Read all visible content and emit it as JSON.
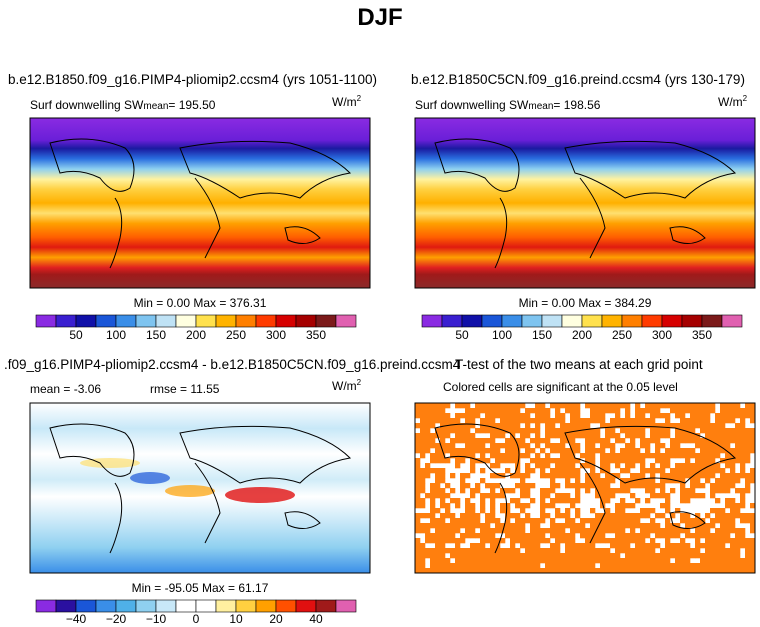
{
  "title": "DJF",
  "units": "W/m",
  "units_exp": "2",
  "chart_data": [
    {
      "type": "heatmap",
      "title": "b.e12.B1850.f09_g16.PIMP4-pliomip2.ccsm4 (yrs 1051-1100)",
      "variable": "Surf downwelling SW",
      "mean_label": "mean",
      "mean": "195.50",
      "min": "0.00",
      "max": "376.31",
      "stats_text": "Min =    0.00 Max = 376.31",
      "colorbar": {
        "ticks": [
          "50",
          "100",
          "150",
          "200",
          "250",
          "300",
          "350"
        ],
        "colors": [
          "#8a2be2",
          "#3a1fd0",
          "#1010a8",
          "#1a56d8",
          "#3a8ee8",
          "#7ec4f0",
          "#bfe2f5",
          "#ffffe0",
          "#ffe14d",
          "#ffb300",
          "#ff7f00",
          "#ff3b00",
          "#d60000",
          "#a50000",
          "#7b1a1a",
          "#e060b0"
        ]
      }
    },
    {
      "type": "heatmap",
      "title": "b.e12.B1850C5CN.f09_g16.preind.ccsm4 (yrs 130-179)",
      "variable": "Surf downwelling SW",
      "mean_label": "mean",
      "mean": "198.56",
      "min": "0.00",
      "max": "384.29",
      "stats_text": "Min =    0.00 Max = 384.29",
      "colorbar": {
        "ticks": [
          "50",
          "100",
          "150",
          "200",
          "250",
          "300",
          "350"
        ]
      }
    },
    {
      "type": "heatmap",
      "title": ".f09_g16.PIMP4-pliomip2.ccsm4 - b.e12.B1850C5CN.f09_g16.preind.ccsm4",
      "mean_text": "mean =   -3.06",
      "rmse_text": "rmse =   11.55",
      "min": "-95.05",
      "max": "61.17",
      "stats_text": "Min = -95.05 Max =  61.17",
      "colorbar": {
        "ticks": [
          "−40",
          "−20",
          "−10",
          "0",
          "10",
          "20",
          "40"
        ],
        "colors": [
          "#8a2be2",
          "#2a10a0",
          "#1a56d8",
          "#3a8ee8",
          "#4fb0e8",
          "#8fd0f0",
          "#c8e8f8",
          "#ffffff",
          "#ffffff",
          "#fff0a0",
          "#ffd040",
          "#ffa000",
          "#ff5000",
          "#e01010",
          "#a01a1a",
          "#e060b0"
        ]
      }
    },
    {
      "type": "heatmap",
      "title": "T-test of the two means at each grid point",
      "subtitle": "Colored cells are significant at the 0.05 level",
      "color": "#ff7f0e"
    }
  ]
}
